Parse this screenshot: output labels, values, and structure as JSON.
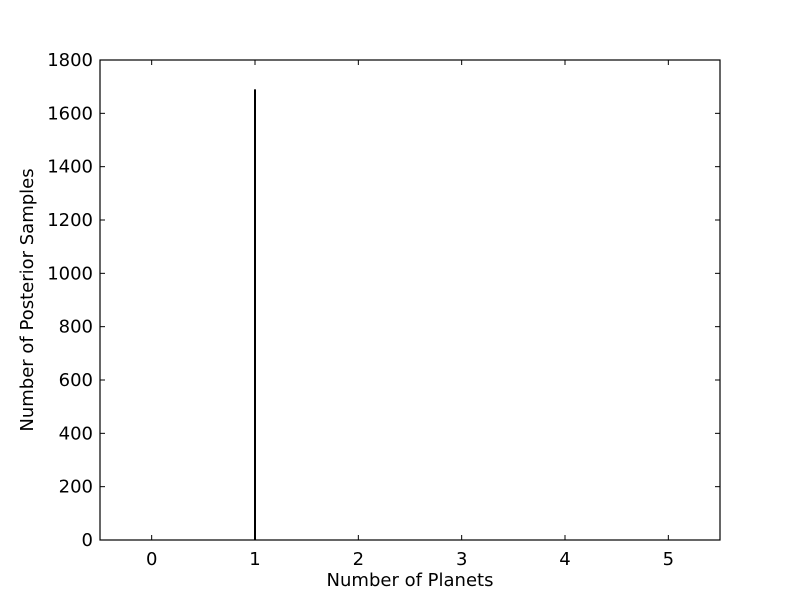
{
  "chart_data": {
    "type": "bar",
    "title": "",
    "xlabel": "Number of Planets",
    "ylabel": "Number of Posterior Samples",
    "xlim": [
      -0.5,
      5.5
    ],
    "ylim": [
      0,
      1800
    ],
    "xticks": [
      0,
      1,
      2,
      3,
      4,
      5
    ],
    "yticks": [
      0,
      200,
      400,
      600,
      800,
      1000,
      1200,
      1400,
      1600,
      1800
    ],
    "grid": false,
    "x": [
      1
    ],
    "values": [
      1690
    ],
    "bar_color": "#000000"
  }
}
